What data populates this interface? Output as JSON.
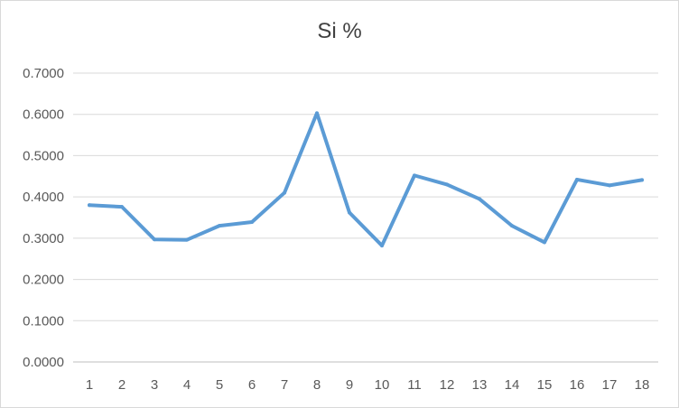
{
  "chart_data": {
    "type": "line",
    "title": "Si %",
    "xlabel": "",
    "ylabel": "",
    "categories": [
      "1",
      "2",
      "3",
      "4",
      "5",
      "6",
      "7",
      "8",
      "9",
      "10",
      "11",
      "12",
      "13",
      "14",
      "15",
      "16",
      "17",
      "18"
    ],
    "series": [
      {
        "values": [
          0.38,
          0.376,
          0.297,
          0.296,
          0.33,
          0.339,
          0.41,
          0.603,
          0.362,
          0.282,
          0.452,
          0.43,
          0.395,
          0.33,
          0.29,
          0.442,
          0.428,
          0.441
        ]
      }
    ],
    "ylim": [
      0,
      0.7
    ],
    "yticks": [
      "0.0000",
      "0.1000",
      "0.2000",
      "0.3000",
      "0.4000",
      "0.5000",
      "0.6000",
      "0.7000"
    ],
    "grid": "horizontal",
    "legend": "none",
    "colors": {
      "line": "#5b9bd5",
      "grid": "#d9d9d9",
      "axis": "#bfbfbf",
      "text": "#595959",
      "title": "#404040"
    }
  }
}
